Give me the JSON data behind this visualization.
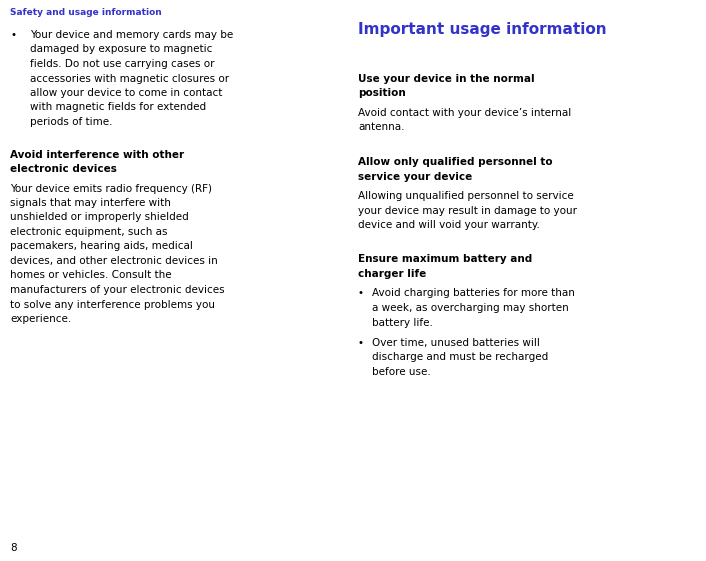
{
  "bg_color": "#ffffff",
  "header_text": "Safety and usage information",
  "header_color": "#3333cc",
  "header_fontsize": 6.5,
  "page_number": "8",
  "page_number_color": "#000000",
  "left_col": {
    "bullet1_text": "Your device and memory cards may be\ndamaged by exposure to magnetic\nfields. Do not use carrying cases or\naccessories with magnetic closures or\nallow your device to come in contact\nwith magnetic fields for extended\nperiods of time.",
    "section1_heading": "Avoid interference with other\nelectronic devices",
    "section1_body": "Your device emits radio frequency (RF)\nsignals that may interfere with\nunshielded or improperly shielded\nelectronic equipment, such as\npacemakers, hearing aids, medical\ndevices, and other electronic devices in\nhomes or vehicles. Consult the\nmanufacturers of your electronic devices\nto solve any interference problems you\nexperience."
  },
  "right_col": {
    "main_heading": "Important usage information",
    "main_heading_color": "#3333cc",
    "main_heading_fontsize": 11.0,
    "section1_heading": "Use your device in the normal\nposition",
    "section1_body": "Avoid contact with your device’s internal\nantenna.",
    "section2_heading": "Allow only qualified personnel to\nservice your device",
    "section2_body": "Allowing unqualified personnel to service\nyour device may result in damage to your\ndevice and will void your warranty.",
    "section3_heading": "Ensure maximum battery and\ncharger life",
    "bullet1": "Avoid charging batteries for more than\na week, as overcharging may shorten\nbattery life.",
    "bullet2": "Over time, unused batteries will\ndischarge and must be recharged\nbefore use."
  },
  "body_fontsize": 7.5,
  "heading_fontsize": 7.5,
  "font_family": "DejaVu Sans"
}
